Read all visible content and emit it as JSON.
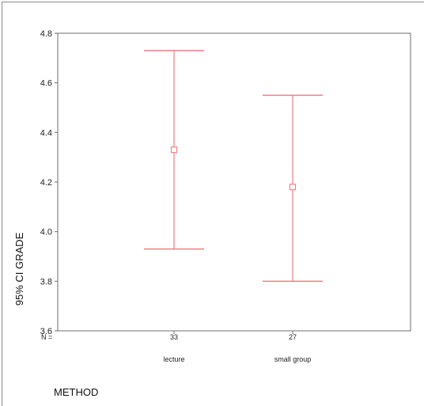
{
  "chart_data": {
    "type": "errorbar",
    "xlabel": "METHOD",
    "ylabel": "95% CI GRADE",
    "n_label": "N =",
    "ylim": [
      3.6,
      4.8
    ],
    "yticks": [
      "3.6",
      "3.8",
      "4.0",
      "4.2",
      "4.4",
      "4.6",
      "4.8"
    ],
    "grid": false,
    "color": "#f07e86",
    "categories": [
      {
        "label": "lecture",
        "n": "33",
        "mean": 4.33,
        "lower": 3.93,
        "upper": 4.73
      },
      {
        "label": "small group",
        "n": "27",
        "mean": 4.18,
        "lower": 3.8,
        "upper": 4.55
      }
    ]
  }
}
